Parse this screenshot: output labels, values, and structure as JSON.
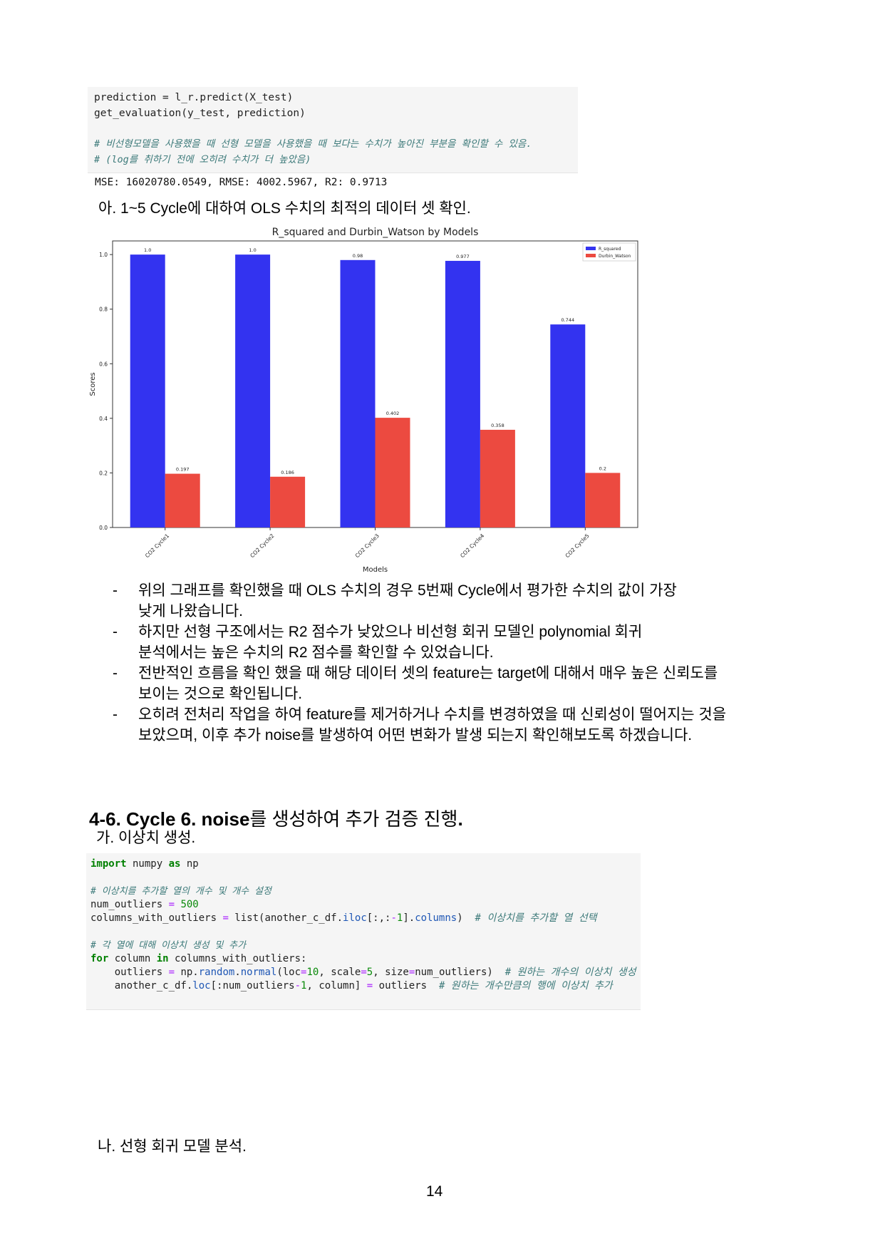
{
  "code1": {
    "line1": "prediction = l_r.predict(X_test)",
    "line2": "get_evaluation(y_test, prediction)",
    "comment1": "# 비선형모델을 사용했을 때 선형 모델을 사용했을 때 보다는 수치가 높아진 부분을 확인할 수 있음.",
    "comment2": "# (log를 취하기 전에 오히려 수치가 더 높았음)",
    "output": "MSE: 16020780.0549, RMSE: 4002.5967, R2: 0.9713"
  },
  "section_a_title": "아. 1~5 Cycle에 대하여 OLS 수치의 최적의 데이터 셋 확인.",
  "chart_data": {
    "type": "bar",
    "title": "R_squared and Durbin_Watson by Models",
    "xlabel": "Models",
    "ylabel": "Scores",
    "categories": [
      "CO2 Cycle1",
      "CO2 Cycle2",
      "CO2 Cycle3",
      "CO2 Cycle4",
      "CO2 Cycle5"
    ],
    "series": [
      {
        "name": "R_squared",
        "values": [
          1.0,
          1.0,
          0.98,
          0.977,
          0.744
        ],
        "labels": [
          "1.0",
          "1.0",
          "0.98",
          "0.977",
          "0.744"
        ],
        "color": "#3333f0"
      },
      {
        "name": "Durbin_Watson",
        "values": [
          0.197,
          0.186,
          0.402,
          0.358,
          0.2
        ],
        "labels": [
          "0.197",
          "0.186",
          "0.402",
          "0.358",
          "0.2"
        ],
        "color": "#ec4a40"
      }
    ],
    "ylim": [
      0,
      1.05
    ],
    "yticks": [
      "0.0",
      "0.2",
      "0.4",
      "0.6",
      "0.8",
      "1.0"
    ],
    "legend": "top-right",
    "grid": false
  },
  "bullets": [
    {
      "line1": "위의 그래프를 확인했을 때 OLS 수치의 경우 5번째 Cycle에서 평가한 수치의 값이 가장",
      "line2": "낮게 나왔습니다."
    },
    {
      "line1": "하지만 선형 구조에서는 R2 점수가 낮았으나 비선형 회귀 모델인 polynomial 회귀",
      "line2": "분석에서는 높은 수치의 R2 점수를 확인할 수 있었습니다."
    },
    {
      "line1": "전반적인 흐름을 확인 했을 때 해당 데이터 셋의 feature는 target에 대해서 매우 높은 신뢰도를",
      "line2": "보이는 것으로 확인됩니다."
    },
    {
      "line1": "오히려 전처리 작업을 하여 feature를 제거하거나 수치를 변경하였을 때 신뢰성이 떨어지는 것을",
      "line2": "보았으며, 이후 추가 noise를 발생하여 어떤 변화가 발생 되는지 확인해보도록 하겠습니다."
    }
  ],
  "bullet_dash": "-",
  "section_heading": {
    "bold": "4-6. Cycle 6. noise",
    "rest": "를 생성하여 추가 검증 진행",
    "end": "."
  },
  "subsection_ga": "가. 이상치 생성.",
  "code2": {
    "l1": "import numpy as np",
    "l2": "# 이상치를 추가할 열의 개수 및 개수 설정",
    "l3": "num_outliers = 500",
    "l4": "columns_with_outliers = list(another_c_df.iloc[:,:-1].columns)",
    "l4c": "# 이상치를 추가할 열 선택",
    "l5": "# 각 열에 대해 이상치 생성 및 추가",
    "l6": "for column in columns_with_outliers:",
    "l7": "    outliers = np.random.normal(loc=10, scale=5, size=num_outliers)",
    "l7c": "# 원하는 개수의 이상치 생성",
    "l8": "    another_c_df.loc[:num_outliers-1, column] = outliers",
    "l8c": "# 원하는 개수만큼의 행에 이상치 추가"
  },
  "subsection_na": "나. 선형 회귀 모델 분석.",
  "page_number": "14"
}
